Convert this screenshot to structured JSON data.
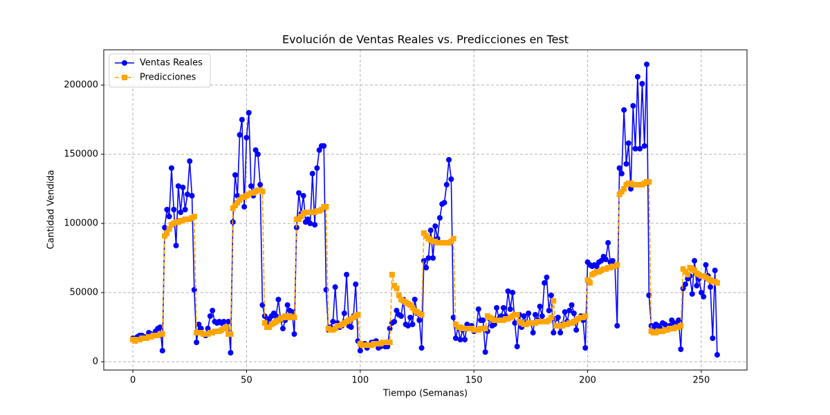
{
  "chart_data": {
    "type": "line",
    "title": "Evolución de Ventas Reales vs. Predicciones en Test",
    "xlabel": "Tiempo (Semanas)",
    "ylabel": "Cantidad Vendida",
    "x": [
      0,
      1,
      2,
      3,
      4,
      5,
      6,
      7,
      8,
      9,
      10,
      11,
      12,
      13,
      14,
      15,
      16,
      17,
      18,
      19,
      20,
      21,
      22,
      23,
      24,
      25,
      26,
      27,
      28,
      29,
      30,
      31,
      32,
      33,
      34,
      35,
      36,
      37,
      38,
      39,
      40,
      41,
      42,
      43,
      44,
      45,
      46,
      47,
      48,
      49,
      50,
      51,
      52,
      53,
      54,
      55,
      56,
      57,
      58,
      59,
      60,
      61,
      62,
      63,
      64,
      65,
      66,
      67,
      68,
      69,
      70,
      71,
      72,
      73,
      74,
      75,
      76,
      77,
      78,
      79,
      80,
      81,
      82,
      83,
      84,
      85,
      86,
      87,
      88,
      89,
      90,
      91,
      92,
      93,
      94,
      95,
      96,
      97,
      98,
      99,
      100,
      101,
      102,
      103,
      104,
      105,
      106,
      107,
      108,
      109,
      110,
      111,
      112,
      113,
      114,
      115,
      116,
      117,
      118,
      119,
      120,
      121,
      122,
      123,
      124,
      125,
      126,
      127,
      128,
      129,
      130,
      131,
      132,
      133,
      134,
      135,
      136,
      137,
      138,
      139,
      140,
      141,
      142,
      143,
      144,
      145,
      146,
      147,
      148,
      149,
      150,
      151,
      152,
      153,
      154,
      155,
      156,
      157,
      158,
      159,
      160,
      161,
      162,
      163,
      164,
      165,
      166,
      167,
      168,
      169,
      170,
      171,
      172,
      173,
      174,
      175,
      176,
      177,
      178,
      179,
      180,
      181,
      182,
      183,
      184,
      185,
      186,
      187,
      188,
      189,
      190,
      191,
      192,
      193,
      194,
      195,
      196,
      197,
      198,
      199,
      200,
      201,
      202,
      203,
      204,
      205,
      206,
      207,
      208,
      209,
      210,
      211,
      212,
      213,
      214,
      215,
      216,
      217,
      218,
      219,
      220,
      221,
      222,
      223,
      224,
      225,
      226,
      227,
      228,
      229,
      230,
      231,
      232,
      233,
      234,
      235,
      236,
      237,
      238,
      239,
      240,
      241,
      242,
      243,
      244,
      245,
      246,
      247,
      248,
      249,
      250,
      251,
      252,
      253,
      254,
      255,
      256,
      257
    ],
    "series": [
      {
        "name": "Ventas Reales",
        "color": "#0000ff",
        "marker": "circle",
        "dashed": false,
        "values": [
          17000,
          16000,
          18000,
          19000,
          19000,
          18000,
          17000,
          21000,
          20000,
          19000,
          22000,
          24000,
          25000,
          8000,
          97000,
          110000,
          105000,
          140000,
          110000,
          84000,
          127000,
          108000,
          126000,
          110000,
          121000,
          145000,
          120000,
          52000,
          14000,
          27000,
          24000,
          20000,
          19000,
          24000,
          33000,
          37000,
          29000,
          28000,
          29000,
          28000,
          29000,
          25000,
          29000,
          6500,
          101000,
          135000,
          120000,
          164000,
          175000,
          112000,
          162000,
          180000,
          127000,
          120000,
          153000,
          150000,
          128000,
          41000,
          33000,
          28000,
          31000,
          33000,
          35000,
          33000,
          45000,
          30000,
          24000,
          30000,
          41000,
          37000,
          36000,
          20000,
          97000,
          122000,
          107000,
          120000,
          101000,
          103000,
          100000,
          136000,
          99000,
          140000,
          153000,
          156000,
          156000,
          52000,
          23000,
          25000,
          29000,
          54000,
          28000,
          25000,
          26000,
          35000,
          63000,
          26000,
          25000,
          33000,
          56000,
          15000,
          8000,
          12000,
          13000,
          10000,
          12000,
          14000,
          14000,
          15000,
          10000,
          11000,
          12000,
          11000,
          11000,
          24000,
          28000,
          29000,
          37000,
          34000,
          33000,
          45000,
          27000,
          26000,
          32000,
          27000,
          45000,
          35000,
          30000,
          10000,
          73000,
          68000,
          75000,
          95000,
          75000,
          98000,
          89000,
          104000,
          114000,
          115000,
          128000,
          146000,
          132000,
          32000,
          17000,
          25000,
          16000,
          23000,
          16000,
          27000,
          24000,
          26000,
          22000,
          23000,
          38000,
          30000,
          30000,
          7000,
          22000,
          31000,
          26000,
          27000,
          39000,
          31000,
          33000,
          39000,
          33000,
          51000,
          38000,
          50000,
          28000,
          11000,
          34000,
          25000,
          33000,
          28000,
          35000,
          28000,
          21000,
          34000,
          30000,
          40000,
          33000,
          57000,
          61000,
          37000,
          48000,
          21000,
          31000,
          32000,
          21000,
          27000,
          36000,
          29000,
          37000,
          41000,
          35000,
          23000,
          31000,
          33000,
          30000,
          10000,
          72000,
          70000,
          69000,
          70000,
          69000,
          72000,
          73000,
          76000,
          74000,
          86000,
          72000,
          73000,
          70000,
          26000,
          140000,
          136000,
          182000,
          143000,
          158000,
          125000,
          185000,
          154000,
          206000,
          154000,
          201000,
          156000,
          215000,
          48000,
          26000,
          25000,
          27000,
          26000,
          24000,
          28000,
          27000,
          25000,
          26000,
          30000,
          28000,
          26000,
          30000,
          9000,
          53000,
          56000,
          60000,
          62000,
          49000,
          73000,
          55000,
          60000,
          50000,
          47000,
          70000,
          62000,
          54000,
          17000,
          66000,
          5000
        ]
      },
      {
        "name": "Predicciones",
        "color": "#ffa500",
        "marker": "square",
        "dashed": true,
        "values": [
          16000,
          15000,
          16000,
          16000,
          17000,
          17000,
          17000,
          18000,
          18000,
          19000,
          19000,
          19000,
          20000,
          20000,
          91000,
          93000,
          96000,
          99000,
          100000,
          101000,
          101000,
          102000,
          102000,
          103000,
          103000,
          103000,
          104000,
          105000,
          21000,
          21000,
          21000,
          20000,
          20000,
          20000,
          21000,
          21000,
          22000,
          22000,
          22000,
          23000,
          24000,
          25000,
          20000,
          20000,
          111000,
          113000,
          115000,
          117000,
          119000,
          119000,
          120000,
          121000,
          122000,
          122000,
          123000,
          124000,
          124000,
          123000,
          28000,
          25000,
          25000,
          27000,
          28000,
          29000,
          30000,
          31000,
          32000,
          33000,
          32000,
          33000,
          32000,
          32000,
          103000,
          103000,
          105000,
          107000,
          108000,
          108000,
          108000,
          108000,
          108000,
          109000,
          109000,
          110000,
          112000,
          112000,
          24000,
          23000,
          23000,
          24000,
          26000,
          26000,
          27000,
          28000,
          29000,
          30000,
          31000,
          32000,
          33000,
          34000,
          13000,
          12000,
          12000,
          12000,
          12000,
          12000,
          13000,
          13000,
          13000,
          13000,
          14000,
          14000,
          14000,
          14000,
          63000,
          55000,
          53000,
          48000,
          45000,
          44000,
          43000,
          42000,
          41000,
          39000,
          37000,
          36000,
          35000,
          34000,
          93000,
          91000,
          89000,
          88000,
          87000,
          87000,
          86000,
          86000,
          86000,
          86000,
          86000,
          86000,
          87000,
          89000,
          27000,
          25000,
          25000,
          24000,
          24000,
          24000,
          24000,
          24000,
          23000,
          23000,
          23000,
          24000,
          24000,
          24000,
          33000,
          32000,
          31000,
          30000,
          30000,
          30000,
          30000,
          30000,
          31000,
          31000,
          32000,
          33000,
          34000,
          34000,
          29000,
          28000,
          27000,
          27000,
          28000,
          28000,
          28000,
          28000,
          29000,
          29000,
          29000,
          29000,
          29000,
          30000,
          32000,
          44000,
          26000,
          26000,
          26000,
          26000,
          27000,
          27000,
          28000,
          28000,
          29000,
          30000,
          31000,
          32000,
          32000,
          33000,
          59000,
          57000,
          63000,
          64000,
          65000,
          65000,
          66000,
          67000,
          67000,
          68000,
          68000,
          69000,
          69000,
          70000,
          121000,
          123000,
          125000,
          128000,
          129000,
          129000,
          128000,
          128000,
          128000,
          128000,
          128000,
          129000,
          130000,
          130000,
          22000,
          21000,
          21000,
          22000,
          22000,
          22000,
          23000,
          23000,
          24000,
          24000,
          24000,
          25000,
          25000,
          26000,
          67000,
          65000,
          63000,
          68000,
          67000,
          66000,
          64000,
          63000,
          62000,
          62000,
          61000,
          60000,
          59000,
          58000,
          58000,
          57000
        ]
      }
    ],
    "xlim": [
      -12.8,
      270.1
    ],
    "ylim": [
      -6000,
      225500
    ],
    "xticks": [
      0,
      50,
      100,
      150,
      200,
      250
    ],
    "yticks": [
      0,
      50000,
      100000,
      150000,
      200000
    ],
    "grid": true,
    "legend": "upper left"
  }
}
